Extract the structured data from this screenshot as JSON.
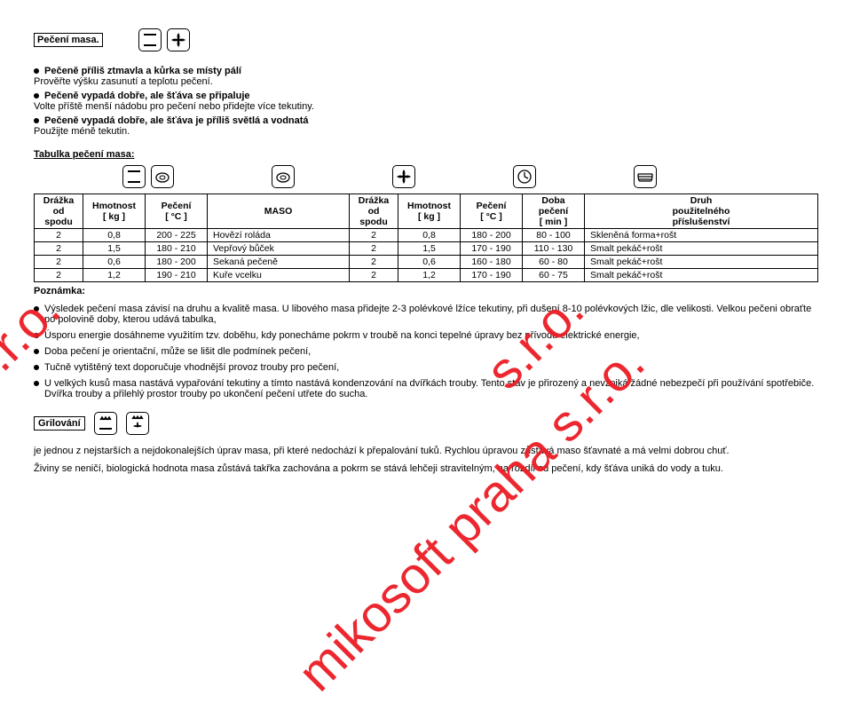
{
  "watermark": "mikosoft praha s.r.o.",
  "sro": "s.r.o.",
  "mi": "mi",
  "header": {
    "title": "Pečení masa."
  },
  "bullets1": {
    "b1_bold": "Pečeně příliš ztmavla a kůrka se místy pálí",
    "b1_sub": "Prověřte výšku zasunutí a teplotu pečení.",
    "b2_bold": "Pečeně vypadá dobře, ale šťáva se připaluje",
    "b2_sub": "Volte příště menší nádobu pro pečení nebo přidejte více tekutiny.",
    "b3_bold": "Pečeně vypadá dobře, ale šťáva je příliš světlá a vodnatá",
    "b3_sub": "Použijte méně tekutin."
  },
  "table_heading": "Tabulka pečení masa:",
  "table": {
    "headers": {
      "h1": "Drážka\nod\nspodu",
      "h2": "Hmotnost\n[ kg ]",
      "h3": "Pečení\n[ °C ]",
      "h4": "MASO",
      "h5": "Drážka\nod\nspodu",
      "h6": "Hmotnost\n[ kg ]",
      "h7": "Pečení\n[ °C ]",
      "h8": "Doba\npečení\n[ min ]",
      "h9": "Druh\npoužitelného\npříslušenství"
    },
    "rows": [
      {
        "c1": "2",
        "c2": "0,8",
        "c3": "200 - 225",
        "c4": "Hovězí roláda",
        "c5": "2",
        "c6": "0,8",
        "c7": "180 - 200",
        "c8": "80 - 100",
        "c9": "Skleněná forma+rošt"
      },
      {
        "c1": "2",
        "c2": "1,5",
        "c3": "180 - 210",
        "c4": "Vepřový bůček",
        "c5": "2",
        "c6": "1,5",
        "c7": "170 - 190",
        "c8": "110 - 130",
        "c9": "Smalt pekáč+rošt"
      },
      {
        "c1": "2",
        "c2": "0,6",
        "c3": "180 - 200",
        "c4": "Sekaná pečeně",
        "c5": "2",
        "c6": "0,6",
        "c7": "160 - 180",
        "c8": "60 - 80",
        "c9": "Smalt pekáč+rošt"
      },
      {
        "c1": "2",
        "c2": "1,2",
        "c3": "190 - 210",
        "c4": "Kuře vcelku",
        "c5": "2",
        "c6": "1,2",
        "c7": "170 - 190",
        "c8": "60 - 75",
        "c9": "Smalt pekáč+rošt"
      }
    ]
  },
  "poznamka": "Poznámka:",
  "notes": {
    "n1a": "Výsledek pečení masa závisí na druhu a kvalitě masa. U libového masa přidejte 2-3 polévkové lžíce tekutiny, při dušení 8-10 polévkových lžic, dle velikosti. Velkou pečeni obraťte po polovině doby, kterou udává tabulka,",
    "n2": "Úsporu energie dosáhneme využitím tzv. doběhu, kdy ponecháme pokrm v troubě na konci tepelné úpravy bez přívodu elektrické energie,",
    "n3": "Doba pečení je orientační, může se lišit dle podmínek pečení,",
    "n4": "Tučně vytištěný text doporučuje vhodnější provoz trouby pro pečení,",
    "n5": "U velkých kusů masa nastává vypařování tekutiny a tímto nastává kondenzování na dvířkách trouby. Tento stav je přirozený a nevzniká žádné nebezpečí při používání spotřebiče. Dvířka trouby a přilehlý prostor trouby po ukončení pečení utřete do sucha."
  },
  "gril": {
    "title": "Grilování",
    "p1": "je jednou z nejstarších a nejdokonalejších úprav masa, při které nedochází k přepalování tuků. Rychlou úpravou zůstává maso šťavnaté a má velmi dobrou chuť.",
    "p2": "Živiny se neničí, biologická hodnota masa zůstává takřka zachována a pokrm se stává lehčeji stravitelným, na rozdíl od pečení, kdy šťáva uniká do vody a tuku."
  },
  "style": {
    "text_color": "#000000",
    "watermark_color": "#ed1c24",
    "background": "#ffffff",
    "font_size_body": 11,
    "font_size_table": 10.5,
    "font_size_watermark": 58,
    "border_color": "#000000"
  }
}
